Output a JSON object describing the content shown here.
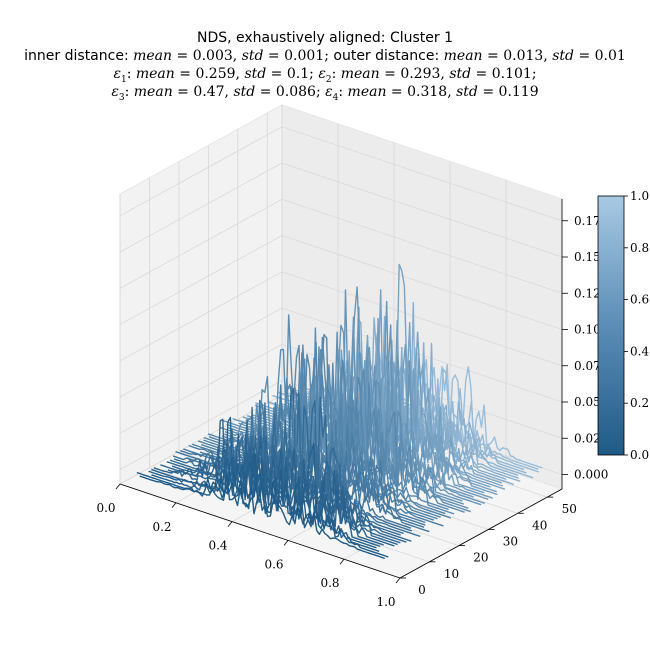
{
  "title": {
    "line1": "NDS, exhaustively aligned: Cluster 1",
    "line2": {
      "inner_label": "inner distance:",
      "inner_mean": "0.003",
      "inner_std": "0.001",
      "outer_label": "outer distance:",
      "outer_mean": "0.013",
      "outer_std": "0.01"
    },
    "line3": {
      "e1_mean": "0.259",
      "e1_std": "0.1",
      "e2_mean": "0.293",
      "e2_std": "0.101"
    },
    "line4": {
      "e3_mean": "0.47",
      "e3_std": "0.086",
      "e4_mean": "0.318",
      "e4_std": "0.119"
    }
  },
  "chart_data": {
    "type": "line",
    "projection": "3d-waterfall",
    "x_ticks": [
      "0.0",
      "0.2",
      "0.4",
      "0.6",
      "0.8",
      "1.0"
    ],
    "y_ticks": [
      "0",
      "10",
      "20",
      "30",
      "40",
      "50"
    ],
    "z_ticks": [
      "0.000",
      "0.025",
      "0.050",
      "0.075",
      "0.100",
      "0.125",
      "0.150",
      "0.175"
    ],
    "xlim": [
      0,
      1
    ],
    "ylim": [
      0,
      55
    ],
    "zlim": [
      -0.01,
      0.19
    ],
    "series_count": 56,
    "colormap": "Blues_r (dark #1f5a87 at 0.0 to light #a8c9e3 at 1.0)",
    "colorbar": {
      "ticks": [
        "0.0",
        "0.2",
        "0.4",
        "0.6",
        "0.8",
        "1.0"
      ],
      "range": [
        0,
        1
      ]
    },
    "grid": true,
    "pane_color": "#f2f2f2"
  }
}
